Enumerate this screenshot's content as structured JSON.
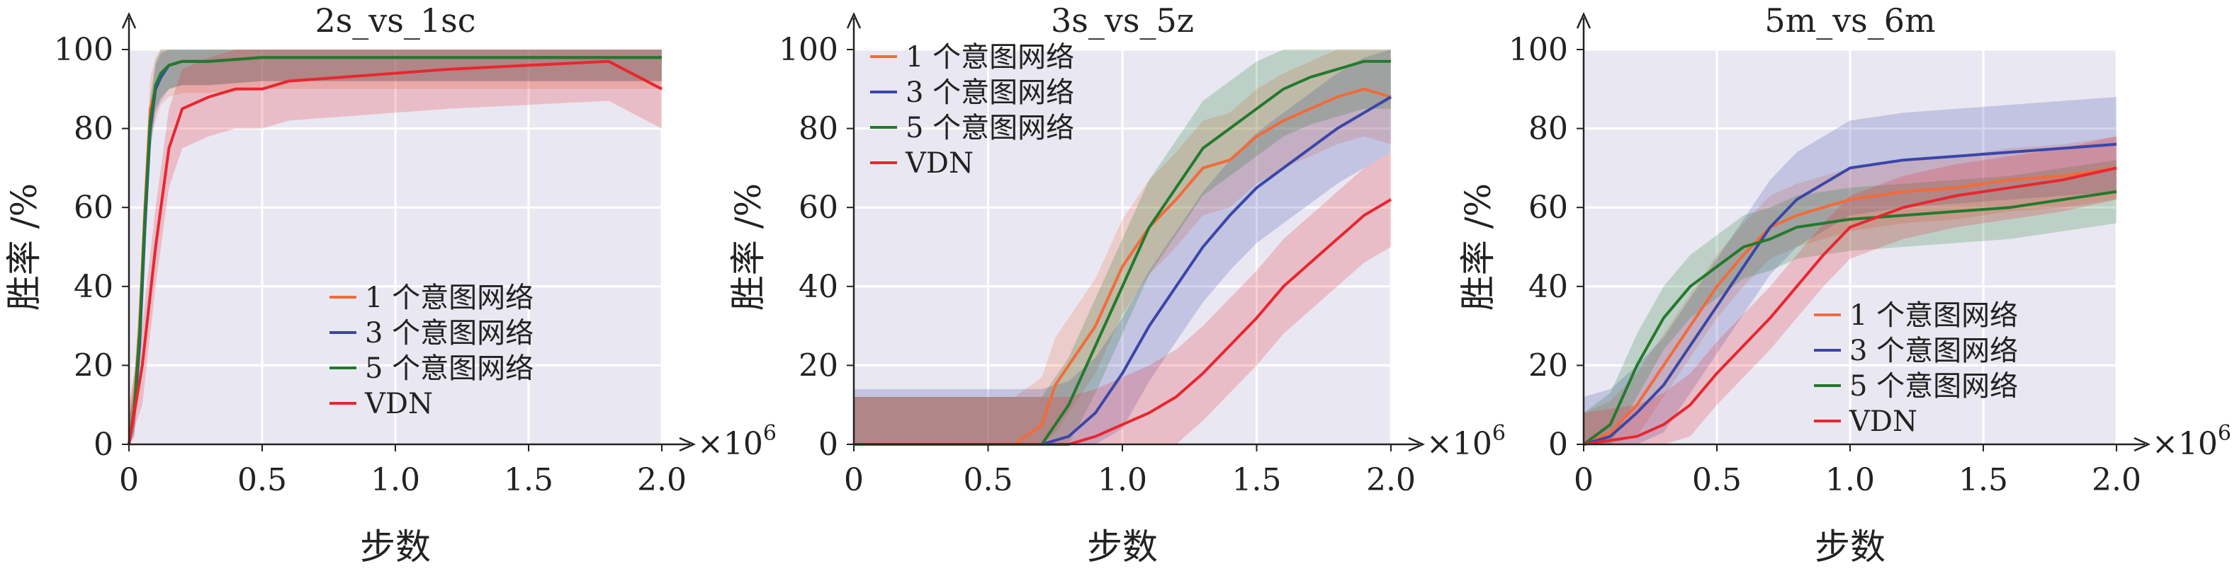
{
  "chart_data": [
    {
      "type": "line",
      "title": "2s_vs_1sc",
      "xlabel": "步数",
      "ylabel": "胜率 /%",
      "x_exponent_label": "×10",
      "x_exponent_power": "6",
      "xlim": [
        0,
        2.0
      ],
      "ylim": [
        0,
        100
      ],
      "xticks": [
        "0",
        "0.5",
        "1.0",
        "1.5",
        "2.0"
      ],
      "yticks": [
        "0",
        "20",
        "40",
        "60",
        "80",
        "100"
      ],
      "grid": true,
      "legend_position": "lower-center",
      "series": [
        {
          "name": "1 个意图网络",
          "color": "#f26b3a",
          "band": 8,
          "x": [
            0,
            0.02,
            0.04,
            0.06,
            0.08,
            0.1,
            0.12,
            0.15,
            0.2,
            0.3,
            0.5,
            0.7,
            0.9,
            1.2,
            1.5,
            1.8,
            2.0
          ],
          "y": [
            0,
            10,
            30,
            60,
            85,
            90,
            94,
            96,
            97,
            97,
            98,
            98,
            98,
            98,
            98,
            98,
            98
          ]
        },
        {
          "name": "3 个意图网络",
          "color": "#3a46a8",
          "band": 6,
          "x": [
            0,
            0.02,
            0.04,
            0.06,
            0.08,
            0.1,
            0.12,
            0.15,
            0.2,
            0.3,
            0.5,
            0.7,
            0.9,
            1.2,
            1.5,
            1.8,
            2.0
          ],
          "y": [
            0,
            8,
            25,
            55,
            80,
            90,
            93,
            96,
            97,
            97,
            98,
            98,
            98,
            98,
            98,
            98,
            98
          ]
        },
        {
          "name": "5 个意图网络",
          "color": "#227a2c",
          "band": 6,
          "x": [
            0,
            0.02,
            0.04,
            0.06,
            0.08,
            0.1,
            0.12,
            0.15,
            0.2,
            0.3,
            0.5,
            0.7,
            0.9,
            1.2,
            1.5,
            1.8,
            2.0
          ],
          "y": [
            0,
            9,
            28,
            58,
            82,
            91,
            94,
            96,
            97,
            97,
            98,
            98,
            98,
            98,
            98,
            98,
            98
          ]
        },
        {
          "name": "VDN",
          "color": "#e8262f",
          "band": 10,
          "x": [
            0,
            0.05,
            0.1,
            0.15,
            0.2,
            0.3,
            0.4,
            0.5,
            0.6,
            0.8,
            1.0,
            1.2,
            1.5,
            1.8,
            2.0
          ],
          "y": [
            0,
            20,
            50,
            75,
            85,
            88,
            90,
            90,
            92,
            93,
            94,
            95,
            96,
            97,
            90
          ]
        }
      ]
    },
    {
      "type": "line",
      "title": "3s_vs_5z",
      "xlabel": "步数",
      "ylabel": "胜率 /%",
      "x_exponent_label": "×10",
      "x_exponent_power": "6",
      "xlim": [
        0,
        2.0
      ],
      "ylim": [
        0,
        100
      ],
      "xticks": [
        "0",
        "0.5",
        "1.0",
        "1.5",
        "2.0"
      ],
      "yticks": [
        "0",
        "20",
        "40",
        "60",
        "80",
        "100"
      ],
      "grid": true,
      "legend_position": "upper-left",
      "series": [
        {
          "name": "1 个意图网络",
          "color": "#f26b3a",
          "band": 12,
          "x": [
            0,
            0.6,
            0.7,
            0.75,
            0.8,
            0.9,
            1.0,
            1.1,
            1.2,
            1.3,
            1.4,
            1.5,
            1.6,
            1.7,
            1.8,
            1.9,
            2.0
          ],
          "y": [
            0,
            0,
            5,
            15,
            20,
            30,
            45,
            55,
            62,
            70,
            72,
            78,
            82,
            85,
            88,
            90,
            88
          ]
        },
        {
          "name": "3 个意图网络",
          "color": "#3a46a8",
          "band": 14,
          "x": [
            0,
            0.7,
            0.8,
            0.9,
            1.0,
            1.1,
            1.2,
            1.3,
            1.4,
            1.5,
            1.6,
            1.7,
            1.8,
            1.9,
            2.0
          ],
          "y": [
            0,
            0,
            2,
            8,
            18,
            30,
            40,
            50,
            58,
            65,
            70,
            75,
            80,
            84,
            88
          ]
        },
        {
          "name": "5 个意图网络",
          "color": "#227a2c",
          "band": 12,
          "x": [
            0,
            0.7,
            0.8,
            0.9,
            1.0,
            1.1,
            1.2,
            1.3,
            1.4,
            1.5,
            1.6,
            1.7,
            1.8,
            1.9,
            2.0
          ],
          "y": [
            0,
            0,
            10,
            25,
            40,
            55,
            65,
            75,
            80,
            85,
            90,
            93,
            95,
            97,
            97
          ]
        },
        {
          "name": "VDN",
          "color": "#e8262f",
          "band": 12,
          "x": [
            0,
            0.8,
            0.9,
            1.0,
            1.1,
            1.2,
            1.3,
            1.4,
            1.5,
            1.6,
            1.7,
            1.8,
            1.9,
            2.0
          ],
          "y": [
            0,
            0,
            2,
            5,
            8,
            12,
            18,
            25,
            32,
            40,
            46,
            52,
            58,
            62
          ]
        }
      ]
    },
    {
      "type": "line",
      "title": "5m_vs_6m",
      "xlabel": "步数",
      "ylabel": "胜率 /%",
      "x_exponent_label": "×10",
      "x_exponent_power": "6",
      "xlim": [
        0,
        2.0
      ],
      "ylim": [
        0,
        100
      ],
      "xticks": [
        "0",
        "0.5",
        "1.0",
        "1.5",
        "2.0"
      ],
      "yticks": [
        "0",
        "20",
        "40",
        "60",
        "80",
        "100"
      ],
      "grid": true,
      "legend_position": "lower-right",
      "series": [
        {
          "name": "1 个意图网络",
          "color": "#f26b3a",
          "band": 8,
          "x": [
            0,
            0.1,
            0.2,
            0.3,
            0.4,
            0.5,
            0.6,
            0.7,
            0.8,
            0.9,
            1.0,
            1.2,
            1.4,
            1.6,
            1.8,
            2.0
          ],
          "y": [
            0,
            3,
            10,
            20,
            30,
            40,
            48,
            55,
            58,
            60,
            62,
            64,
            65,
            67,
            68,
            70
          ]
        },
        {
          "name": "3 个意图网络",
          "color": "#3a46a8",
          "band": 12,
          "x": [
            0,
            0.1,
            0.2,
            0.3,
            0.4,
            0.5,
            0.6,
            0.7,
            0.8,
            0.9,
            1.0,
            1.2,
            1.4,
            1.6,
            1.8,
            2.0
          ],
          "y": [
            0,
            2,
            8,
            15,
            25,
            35,
            45,
            55,
            62,
            66,
            70,
            72,
            73,
            74,
            75,
            76
          ]
        },
        {
          "name": "5 个意图网络",
          "color": "#227a2c",
          "band": 8,
          "x": [
            0,
            0.1,
            0.2,
            0.3,
            0.4,
            0.5,
            0.6,
            0.7,
            0.8,
            0.9,
            1.0,
            1.2,
            1.4,
            1.6,
            1.8,
            2.0
          ],
          "y": [
            0,
            5,
            20,
            32,
            40,
            45,
            50,
            52,
            55,
            56,
            57,
            58,
            59,
            60,
            62,
            64
          ]
        },
        {
          "name": "VDN",
          "color": "#e8262f",
          "band": 8,
          "x": [
            0,
            0.2,
            0.3,
            0.4,
            0.5,
            0.6,
            0.7,
            0.8,
            0.9,
            1.0,
            1.2,
            1.4,
            1.6,
            1.8,
            2.0
          ],
          "y": [
            0,
            2,
            5,
            10,
            18,
            25,
            32,
            40,
            48,
            55,
            60,
            63,
            65,
            67,
            70
          ]
        }
      ]
    }
  ]
}
